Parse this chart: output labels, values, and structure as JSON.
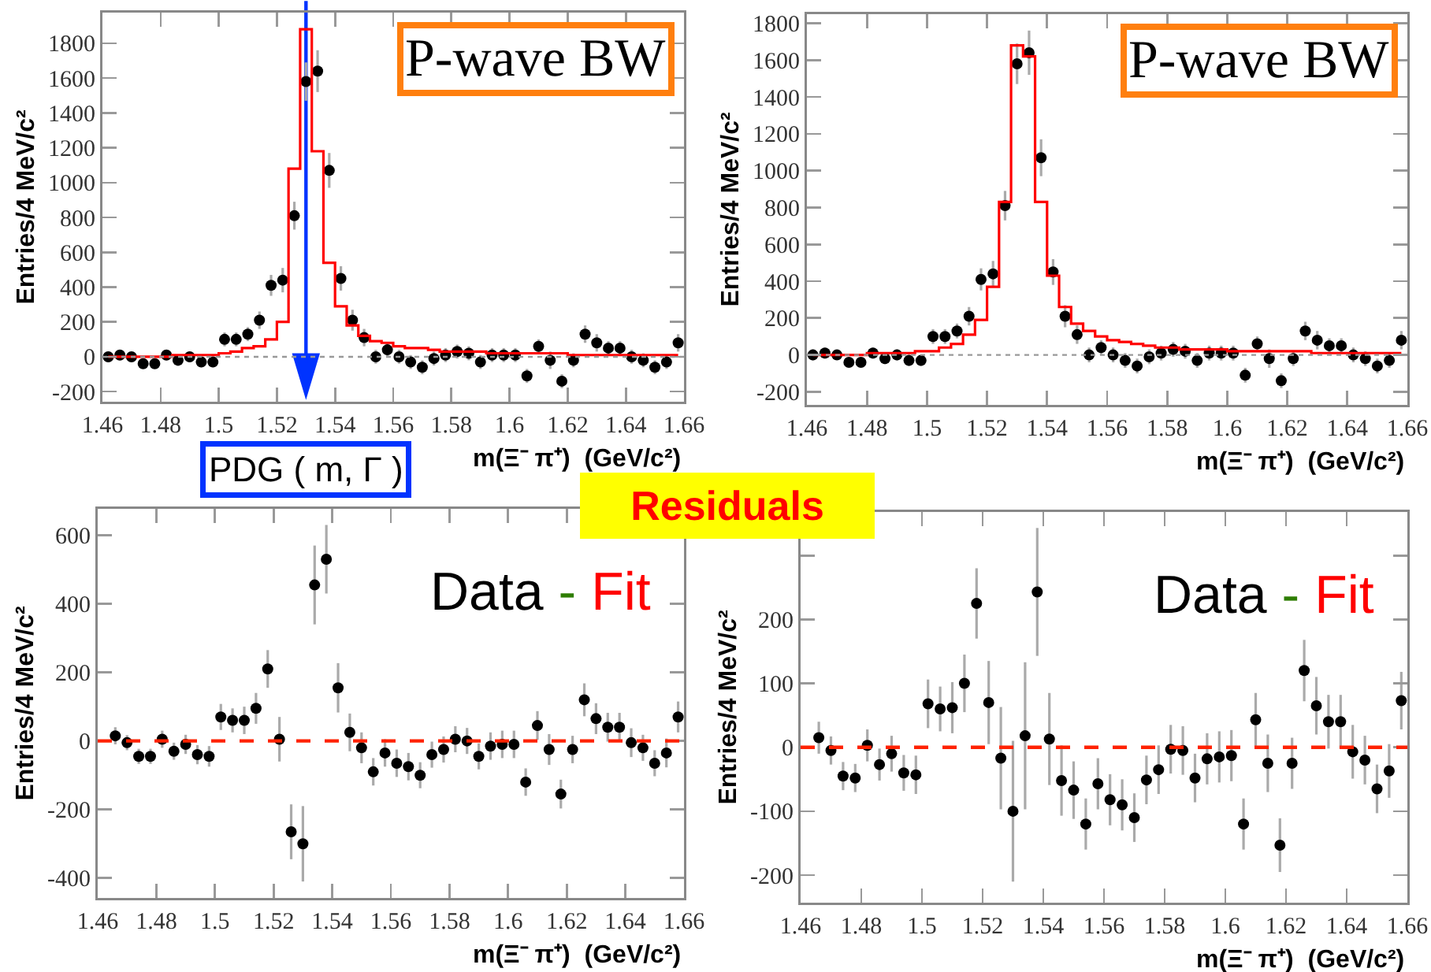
{
  "chart_data": [
    {
      "type": "scatter",
      "xlabel": "m(Ξ⁻ π⁺)  (GeV/c²)",
      "ylabel": "Entries/4 MeV/c²",
      "x": [
        1.462,
        1.466,
        1.47,
        1.474,
        1.478,
        1.482,
        1.486,
        1.49,
        1.494,
        1.498,
        1.502,
        1.506,
        1.51,
        1.514,
        1.518,
        1.522,
        1.526,
        1.53,
        1.534,
        1.538,
        1.542,
        1.546,
        1.55,
        1.554,
        1.558,
        1.562,
        1.566,
        1.57,
        1.574,
        1.578,
        1.582,
        1.586,
        1.59,
        1.594,
        1.598,
        1.602,
        1.606,
        1.61,
        1.614,
        1.618,
        1.622,
        1.626,
        1.63,
        1.634,
        1.638,
        1.642,
        1.646,
        1.65,
        1.654,
        1.658
      ],
      "xlim": [
        1.46,
        1.66
      ],
      "xticks": [
        1.46,
        1.48,
        1.5,
        1.52,
        1.54,
        1.56,
        1.58,
        1.6,
        1.62,
        1.64,
        1.66
      ],
      "ylim": [
        -258,
        1976
      ],
      "yticks": [
        -200,
        0,
        200,
        400,
        600,
        800,
        1000,
        1200,
        1400,
        1600,
        1800
      ],
      "series": [
        {
          "type": "scatter",
          "marker": "circle",
          "color": "#000000",
          "values": [
            0,
            10,
            0,
            -40,
            -40,
            10,
            -20,
            0,
            -30,
            -30,
            100,
            100,
            130,
            210,
            410,
            440,
            810,
            1580,
            1640,
            1070,
            450,
            210,
            110,
            0,
            40,
            0,
            -30,
            -60,
            -10,
            10,
            30,
            20,
            -30,
            10,
            10,
            10,
            -110,
            60,
            -20,
            -140,
            -20,
            130,
            80,
            50,
            50,
            0,
            -20,
            -60,
            -30,
            80
          ],
          "errors": [
            30,
            30,
            20,
            20,
            20,
            30,
            30,
            30,
            30,
            30,
            40,
            40,
            40,
            50,
            60,
            70,
            80,
            110,
            120,
            100,
            70,
            60,
            50,
            40,
            40,
            40,
            40,
            40,
            40,
            40,
            40,
            40,
            40,
            40,
            40,
            40,
            40,
            40,
            50,
            40,
            40,
            50,
            50,
            40,
            40,
            40,
            40,
            40,
            40,
            50
          ]
        },
        {
          "type": "step",
          "marker": "none",
          "color": "#ff0000",
          "values": [
            0,
            0,
            0,
            0,
            0,
            0,
            10,
            10,
            10,
            10,
            20,
            30,
            50,
            60,
            100,
            200,
            1080,
            1880,
            1180,
            540,
            290,
            180,
            120,
            90,
            80,
            60,
            50,
            50,
            40,
            30,
            30,
            30,
            30,
            20,
            20,
            20,
            20,
            20,
            20,
            20,
            10,
            10,
            10,
            10,
            10,
            10,
            10,
            10,
            10,
            10
          ]
        }
      ],
      "ref_lines": [
        {
          "axis": "x",
          "value": 1.53,
          "color": "#0033ff"
        },
        {
          "axis": "y",
          "value": 0,
          "color": "#999999",
          "line_style": "dotted"
        }
      ],
      "annotations": [
        "P-wave BW",
        "PDG ( m, Γ )"
      ]
    },
    {
      "type": "scatter",
      "xlabel": "m(Ξ⁻ π⁺)  (GeV/c²)",
      "ylabel": "Entries/4 MeV/c²",
      "x": [
        1.462,
        1.466,
        1.47,
        1.474,
        1.478,
        1.482,
        1.486,
        1.49,
        1.494,
        1.498,
        1.502,
        1.506,
        1.51,
        1.514,
        1.518,
        1.522,
        1.526,
        1.53,
        1.534,
        1.538,
        1.542,
        1.546,
        1.55,
        1.554,
        1.558,
        1.562,
        1.566,
        1.57,
        1.574,
        1.578,
        1.582,
        1.586,
        1.59,
        1.594,
        1.598,
        1.602,
        1.606,
        1.61,
        1.614,
        1.618,
        1.622,
        1.626,
        1.63,
        1.634,
        1.638,
        1.642,
        1.646,
        1.65,
        1.654,
        1.658
      ],
      "xlim": [
        1.46,
        1.66
      ],
      "xticks": [
        1.46,
        1.48,
        1.5,
        1.52,
        1.54,
        1.56,
        1.58,
        1.6,
        1.62,
        1.64,
        1.66
      ],
      "ylim": [
        -271,
        1849
      ],
      "yticks": [
        -200,
        0,
        200,
        400,
        600,
        800,
        1000,
        1200,
        1400,
        1600,
        1800
      ],
      "series": [
        {
          "type": "scatter",
          "marker": "circle",
          "color": "#000000",
          "values": [
            0,
            10,
            0,
            -40,
            -40,
            10,
            -20,
            0,
            -30,
            -30,
            100,
            100,
            130,
            210,
            410,
            440,
            810,
            1580,
            1640,
            1070,
            450,
            210,
            110,
            0,
            40,
            0,
            -30,
            -60,
            -10,
            10,
            30,
            20,
            -30,
            10,
            10,
            10,
            -110,
            60,
            -20,
            -140,
            -20,
            130,
            80,
            50,
            50,
            0,
            -20,
            -60,
            -30,
            80
          ],
          "errors": [
            30,
            30,
            20,
            20,
            20,
            30,
            30,
            30,
            30,
            30,
            40,
            40,
            40,
            50,
            60,
            70,
            80,
            110,
            120,
            100,
            70,
            60,
            50,
            40,
            40,
            40,
            40,
            40,
            40,
            40,
            40,
            40,
            40,
            40,
            40,
            40,
            40,
            40,
            50,
            40,
            40,
            50,
            50,
            40,
            40,
            40,
            40,
            40,
            40,
            50
          ]
        },
        {
          "type": "step",
          "marker": "none",
          "color": "#ff0000",
          "values": [
            0,
            0,
            0,
            0,
            0,
            10,
            10,
            10,
            10,
            20,
            20,
            40,
            60,
            110,
            190,
            370,
            830,
            1680,
            1620,
            830,
            430,
            260,
            170,
            130,
            100,
            80,
            70,
            60,
            50,
            40,
            40,
            30,
            30,
            30,
            30,
            20,
            20,
            20,
            20,
            20,
            20,
            20,
            10,
            10,
            10,
            10,
            10,
            10,
            10,
            10
          ]
        }
      ],
      "ref_lines": [
        {
          "axis": "y",
          "value": 0,
          "color": "#999999",
          "line_style": "dotted"
        }
      ],
      "annotations": [
        "P-wave BW"
      ]
    },
    {
      "type": "scatter",
      "xlabel": "m(Ξ⁻ π⁺)  (GeV/c²)",
      "ylabel": "Entries/4 MeV/c²",
      "x": [
        1.466,
        1.47,
        1.474,
        1.478,
        1.482,
        1.486,
        1.49,
        1.494,
        1.498,
        1.502,
        1.506,
        1.51,
        1.514,
        1.518,
        1.522,
        1.526,
        1.53,
        1.534,
        1.538,
        1.542,
        1.546,
        1.55,
        1.554,
        1.558,
        1.562,
        1.566,
        1.57,
        1.574,
        1.578,
        1.582,
        1.586,
        1.59,
        1.594,
        1.598,
        1.602,
        1.606,
        1.61,
        1.614,
        1.618,
        1.622,
        1.626,
        1.63,
        1.634,
        1.638,
        1.642,
        1.646,
        1.65,
        1.654,
        1.658
      ],
      "xlim": [
        1.46,
        1.66
      ],
      "xticks": [
        1.46,
        1.48,
        1.5,
        1.52,
        1.54,
        1.56,
        1.58,
        1.6,
        1.62,
        1.64,
        1.66
      ],
      "ylim": [
        -458,
        677
      ],
      "yticks": [
        -400,
        -200,
        0,
        200,
        400,
        600
      ],
      "series": [
        {
          "type": "scatter",
          "marker": "circle",
          "color": "#000000",
          "values": [
            15,
            -5,
            -45,
            -45,
            5,
            -30,
            -10,
            -40,
            -45,
            70,
            60,
            60,
            95,
            210,
            5,
            -265,
            -300,
            455,
            530,
            155,
            25,
            -20,
            -90,
            -35,
            -65,
            -75,
            -100,
            -40,
            -25,
            5,
            0,
            -45,
            -15,
            -10,
            -10,
            -120,
            45,
            -25,
            -155,
            -25,
            120,
            65,
            40,
            40,
            -5,
            -20,
            -65,
            -35,
            70
          ],
          "errors": [
            25,
            22,
            22,
            22,
            25,
            25,
            28,
            28,
            30,
            38,
            35,
            40,
            45,
            55,
            65,
            80,
            110,
            115,
            100,
            72,
            55,
            45,
            40,
            40,
            40,
            40,
            38,
            38,
            38,
            38,
            38,
            38,
            40,
            40,
            40,
            40,
            42,
            45,
            42,
            40,
            48,
            45,
            42,
            42,
            42,
            38,
            38,
            42,
            45
          ]
        }
      ],
      "ref_lines": [
        {
          "axis": "y",
          "value": 0,
          "color": "#ff2200",
          "line_style": "dashed"
        }
      ],
      "annotations": [
        "Data - Fit",
        "Residuals"
      ]
    },
    {
      "type": "scatter",
      "xlabel": "m(Ξ⁻ π⁺)  (GeV/c²)",
      "ylabel": "Entries/4 MeV/c²",
      "x": [
        1.466,
        1.47,
        1.474,
        1.478,
        1.482,
        1.486,
        1.49,
        1.494,
        1.498,
        1.502,
        1.506,
        1.51,
        1.514,
        1.518,
        1.522,
        1.526,
        1.53,
        1.534,
        1.538,
        1.542,
        1.546,
        1.55,
        1.554,
        1.558,
        1.562,
        1.566,
        1.57,
        1.574,
        1.578,
        1.582,
        1.586,
        1.59,
        1.594,
        1.598,
        1.602,
        1.606,
        1.61,
        1.614,
        1.618,
        1.622,
        1.626,
        1.63,
        1.634,
        1.638,
        1.642,
        1.646,
        1.65,
        1.654,
        1.658
      ],
      "xlim": [
        1.46,
        1.66
      ],
      "xticks": [
        1.46,
        1.48,
        1.5,
        1.52,
        1.54,
        1.56,
        1.58,
        1.6,
        1.62,
        1.64,
        1.66
      ],
      "ylim": [
        -243,
        368
      ],
      "yticks": [
        -200,
        -100,
        0,
        100,
        200,
        {
          "value": 300,
          "label": null
        }
      ],
      "series": [
        {
          "type": "scatter",
          "marker": "circle",
          "color": "#000000",
          "values": [
            15,
            -5,
            -45,
            -48,
            3,
            -27,
            -10,
            -40,
            -43,
            68,
            60,
            62,
            100,
            225,
            70,
            -17,
            -100,
            18,
            243,
            13,
            -52,
            -67,
            -120,
            -57,
            -82,
            -90,
            -110,
            -51,
            -35,
            -3,
            -5,
            -48,
            -18,
            -15,
            -13,
            -120,
            43,
            -25,
            -153,
            -25,
            120,
            65,
            40,
            40,
            -7,
            -20,
            -65,
            -37,
            73
          ],
          "errors": [
            25,
            22,
            22,
            22,
            25,
            25,
            28,
            28,
            30,
            38,
            35,
            40,
            45,
            55,
            65,
            80,
            110,
            115,
            100,
            72,
            55,
            45,
            40,
            40,
            40,
            40,
            38,
            38,
            38,
            38,
            38,
            38,
            40,
            40,
            40,
            40,
            42,
            45,
            42,
            40,
            48,
            45,
            42,
            42,
            42,
            38,
            38,
            42,
            45
          ]
        }
      ],
      "ref_lines": [
        {
          "axis": "y",
          "value": 0,
          "color": "#ff2200",
          "line_style": "dashed"
        }
      ],
      "annotations": [
        "Data - Fit"
      ]
    }
  ]
}
